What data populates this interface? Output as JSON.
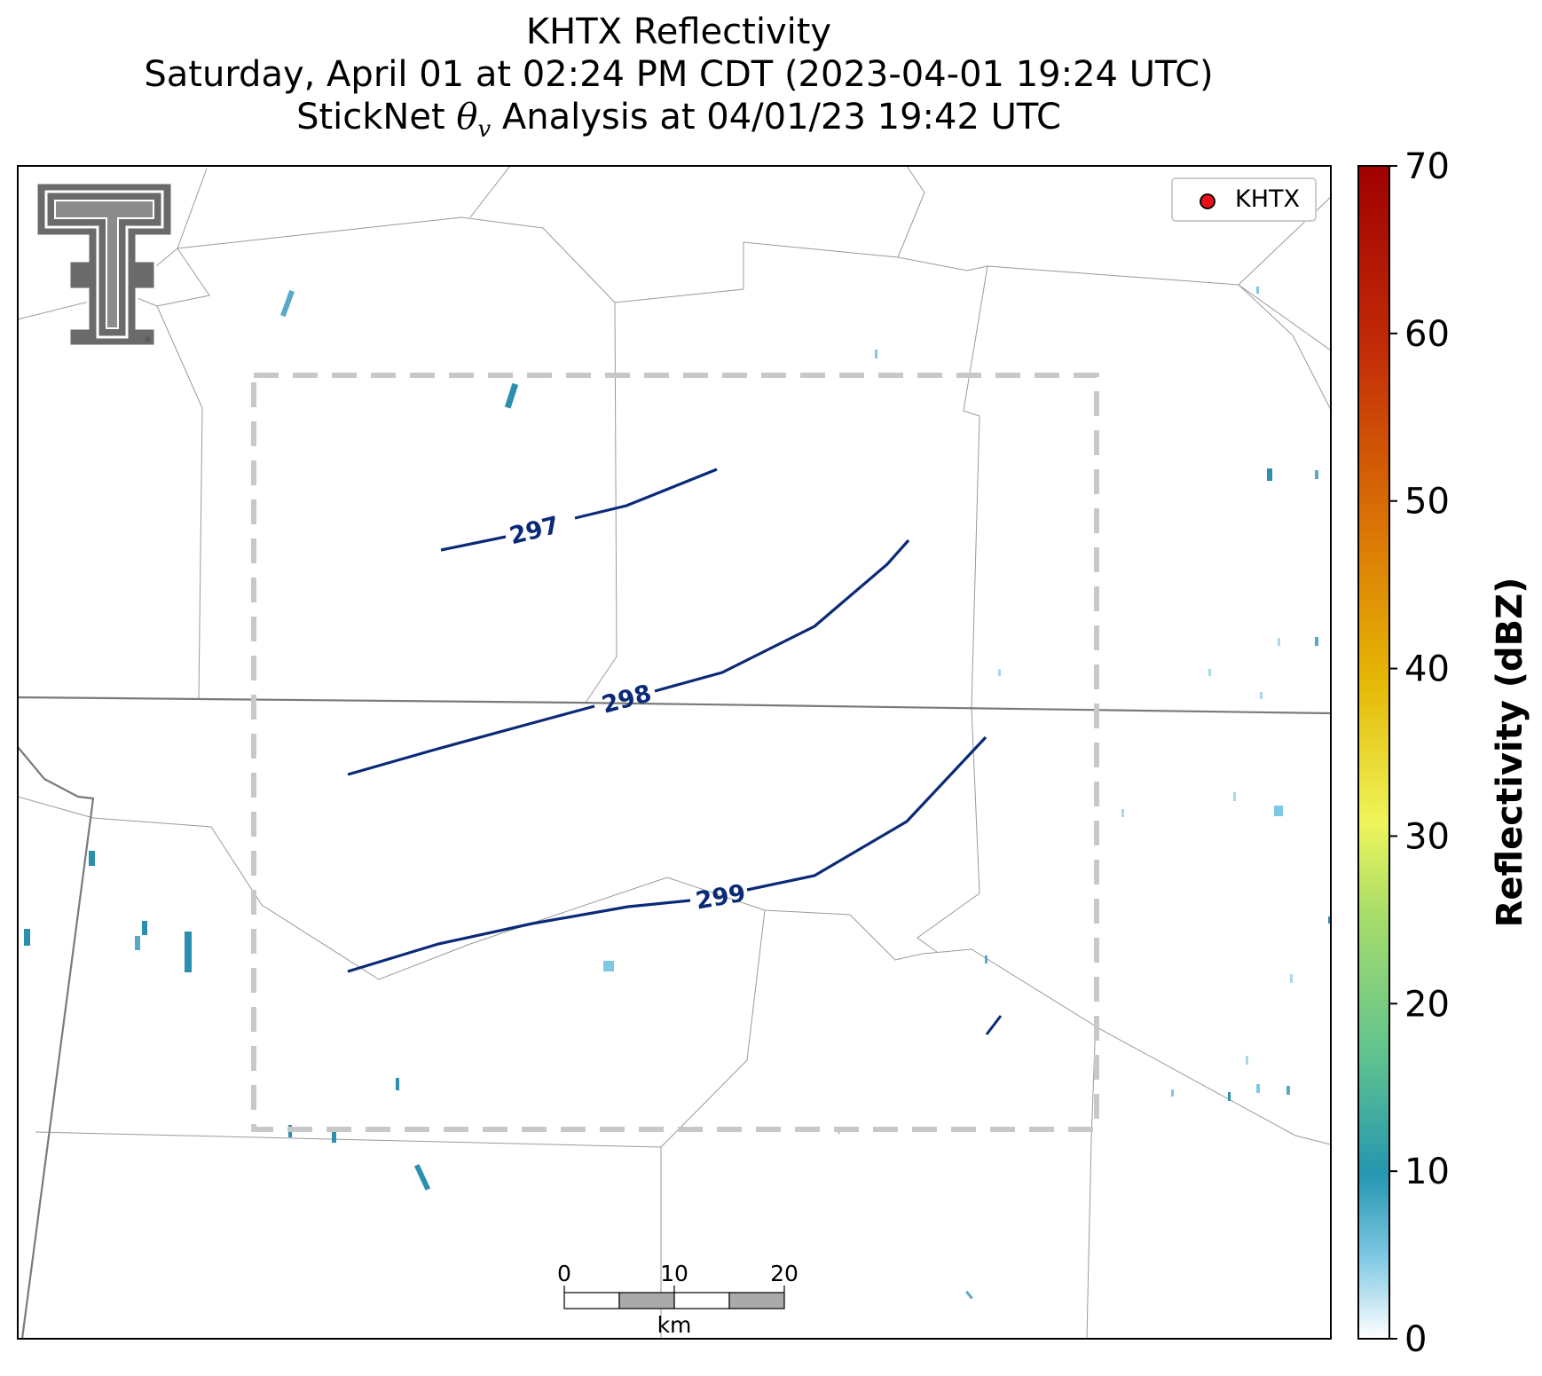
{
  "title": {
    "line1": "KHTX Reflectivity",
    "line2": "Saturday, April 01 at 02:24 PM CDT (2023-04-01 19:24 UTC)",
    "line3_prefix": "StickNet ",
    "line3_symbol": "θ",
    "line3_subscript": "v",
    "line3_suffix": " Analysis at 04/01/23 19:42 UTC"
  },
  "legend": {
    "label": "KHTX",
    "marker_color": "#e8101a"
  },
  "contours": [
    {
      "label": "297",
      "color": "#0a2a78"
    },
    {
      "label": "298",
      "color": "#0a2a78"
    },
    {
      "label": "299",
      "color": "#0a2a78"
    }
  ],
  "scale_bar": {
    "ticks": [
      "0",
      "10",
      "20"
    ],
    "unit": "km"
  },
  "colorbar": {
    "label": "Reflectivity (dBZ)",
    "ticks": [
      "0",
      "10",
      "20",
      "30",
      "40",
      "50",
      "60",
      "70"
    ],
    "min": 0,
    "max": 70,
    "colors": [
      "#ffffff",
      "#7ec8e3",
      "#2596b0",
      "#5ec28f",
      "#a6dc6a",
      "#eef55a",
      "#e5b805",
      "#dc7a05",
      "#c42d08",
      "#a00000"
    ]
  },
  "logo": {
    "name": "Texas Tech Double T",
    "mark": "®"
  }
}
